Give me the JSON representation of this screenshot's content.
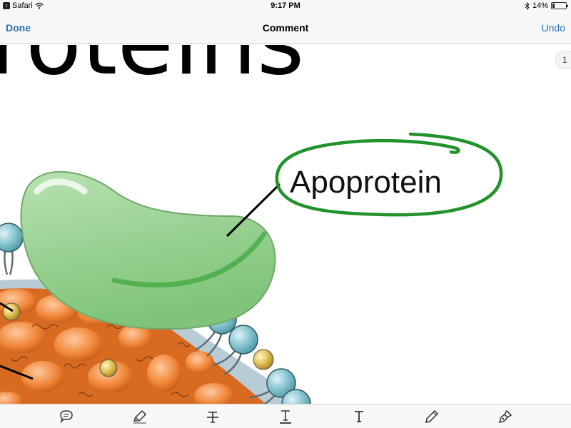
{
  "status_bar": {
    "app": "Safari",
    "time": "9:17 PM",
    "battery": "14%",
    "battery_level": 0.14
  },
  "nav": {
    "done_label": "Done",
    "title": "Comment",
    "undo_label": "Undo"
  },
  "document": {
    "heading_fragment": "roteins",
    "annotation_label": "Apoprotein",
    "page_number": "1",
    "colors": {
      "annotation_ink": "#2a9a2a",
      "apoprotein_fill": "#9fd49a",
      "core_fill": "#e8772a",
      "phospholipid_head": "#8ec9d4"
    }
  },
  "toolbar": {
    "tools": [
      {
        "name": "note-tool",
        "icon": "speech-bubble-icon"
      },
      {
        "name": "highlight-tool",
        "icon": "highlighter-icon"
      },
      {
        "name": "strikethrough-tool",
        "icon": "strikethrough-text-icon"
      },
      {
        "name": "underline-tool",
        "icon": "underline-text-icon"
      },
      {
        "name": "text-tool",
        "icon": "text-icon"
      },
      {
        "name": "pencil-tool",
        "icon": "pencil-icon"
      },
      {
        "name": "pen-tool",
        "icon": "fountain-pen-icon"
      }
    ]
  }
}
